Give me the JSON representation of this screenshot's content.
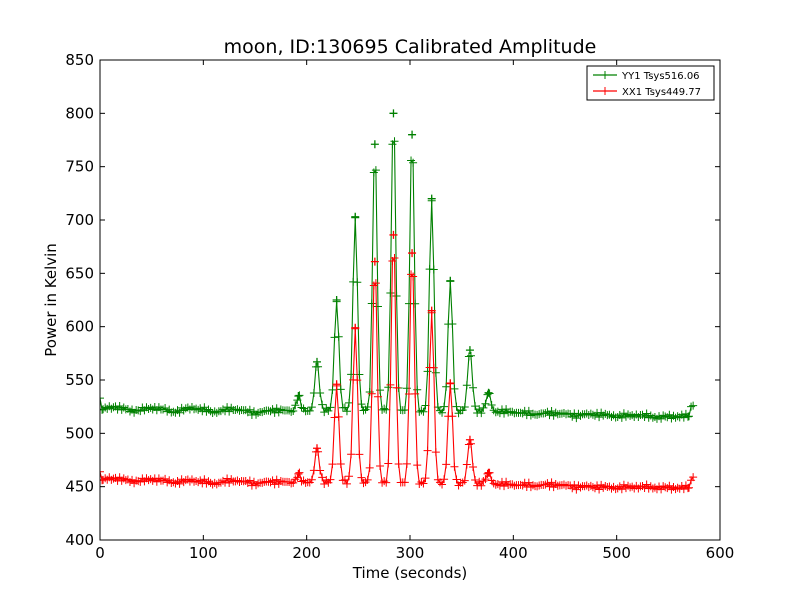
{
  "chart_data": {
    "type": "line",
    "title": "moon, ID:130695 Calibrated Amplitude",
    "xlabel": "Time (seconds)",
    "ylabel": "Power in Kelvin",
    "xlim": [
      0,
      600
    ],
    "ylim": [
      400,
      850
    ],
    "xticks": [
      0,
      100,
      200,
      300,
      400,
      500,
      600
    ],
    "yticks": [
      400,
      450,
      500,
      550,
      600,
      650,
      700,
      750,
      800,
      850
    ],
    "grid": false,
    "legend_position": "top-right",
    "marker": "plus",
    "peak_times": [
      192,
      210,
      229,
      247,
      266,
      284,
      302,
      321,
      339,
      358,
      376
    ],
    "series": [
      {
        "name": "YY1 Tsys516.06",
        "color": "#008000",
        "baseline": [
          [
            0,
            522
          ],
          [
            15,
            525
          ],
          [
            30,
            521
          ],
          [
            55,
            524
          ],
          [
            70,
            520
          ],
          [
            90,
            524
          ],
          [
            110,
            520
          ],
          [
            130,
            523
          ],
          [
            150,
            519
          ],
          [
            170,
            522
          ],
          [
            190,
            520
          ],
          [
            210,
            521
          ],
          [
            240,
            522
          ],
          [
            280,
            521
          ],
          [
            320,
            520
          ],
          [
            360,
            521
          ],
          [
            400,
            520
          ],
          [
            420,
            518
          ],
          [
            440,
            519
          ],
          [
            460,
            517
          ],
          [
            480,
            518
          ],
          [
            500,
            516
          ],
          [
            520,
            517
          ],
          [
            540,
            515
          ],
          [
            560,
            516
          ],
          [
            570,
            516
          ]
        ],
        "peaks": [
          535,
          567,
          625,
          703,
          771,
          800,
          780,
          720,
          643,
          578,
          538
        ],
        "start": [
          [
            0,
            533
          ],
          [
            2,
            522
          ]
        ],
        "end": [
          [
            570,
            516
          ],
          [
            572,
            525
          ],
          [
            574,
            526
          ]
        ]
      },
      {
        "name": "XX1 Tsys449.77",
        "color": "#ff0000",
        "baseline": [
          [
            0,
            456
          ],
          [
            15,
            458
          ],
          [
            30,
            455
          ],
          [
            55,
            457
          ],
          [
            70,
            454
          ],
          [
            90,
            456
          ],
          [
            110,
            453
          ],
          [
            130,
            456
          ],
          [
            150,
            453
          ],
          [
            170,
            455
          ],
          [
            190,
            453
          ],
          [
            210,
            454
          ],
          [
            240,
            454
          ],
          [
            280,
            453
          ],
          [
            320,
            453
          ],
          [
            360,
            453
          ],
          [
            400,
            452
          ],
          [
            420,
            451
          ],
          [
            440,
            452
          ],
          [
            460,
            450
          ],
          [
            480,
            450
          ],
          [
            500,
            449
          ],
          [
            520,
            450
          ],
          [
            540,
            449
          ],
          [
            560,
            449
          ],
          [
            570,
            449
          ]
        ],
        "peaks": [
          462,
          486,
          546,
          599,
          661,
          686,
          669,
          615,
          547,
          494,
          463
        ],
        "start": [
          [
            0,
            464
          ],
          [
            2,
            456
          ]
        ],
        "end": [
          [
            570,
            449
          ],
          [
            572,
            456
          ],
          [
            574,
            459
          ]
        ]
      }
    ]
  }
}
